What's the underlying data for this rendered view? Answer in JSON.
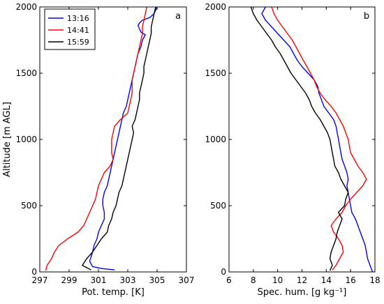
{
  "chart_data": [
    {
      "type": "line",
      "panel_label": "a",
      "xlabel": "Pot. temp. [K]",
      "ylabel": "Altitude [m AGL]",
      "xlim": [
        297,
        307
      ],
      "ylim": [
        0,
        2000
      ],
      "xticks": [
        "297",
        "299",
        "301",
        "303",
        "305",
        "307"
      ],
      "yticks": [
        "0",
        "500",
        "1000",
        "1500",
        "2000"
      ],
      "legend": "top-left",
      "series": [
        {
          "name": "13:16",
          "color": "#0000ff",
          "points": [
            [
              302.1,
              15
            ],
            [
              301.3,
              25
            ],
            [
              300.6,
              40
            ],
            [
              300.4,
              80
            ],
            [
              300.6,
              150
            ],
            [
              300.7,
              200
            ],
            [
              300.9,
              250
            ],
            [
              301.0,
              300
            ],
            [
              301.2,
              350
            ],
            [
              301.4,
              400
            ],
            [
              301.4,
              450
            ],
            [
              301.3,
              500
            ],
            [
              301.3,
              550
            ],
            [
              301.4,
              600
            ],
            [
              301.6,
              650
            ],
            [
              301.7,
              700
            ],
            [
              301.8,
              750
            ],
            [
              301.9,
              800
            ],
            [
              302.0,
              850
            ],
            [
              302.1,
              900
            ],
            [
              302.2,
              950
            ],
            [
              302.3,
              1000
            ],
            [
              302.4,
              1050
            ],
            [
              302.5,
              1100
            ],
            [
              302.6,
              1150
            ],
            [
              302.7,
              1200
            ],
            [
              302.9,
              1250
            ],
            [
              303.0,
              1300
            ],
            [
              303.1,
              1350
            ],
            [
              303.2,
              1400
            ],
            [
              303.3,
              1450
            ],
            [
              303.4,
              1500
            ],
            [
              303.5,
              1550
            ],
            [
              303.6,
              1600
            ],
            [
              303.7,
              1650
            ],
            [
              303.9,
              1700
            ],
            [
              304.0,
              1750
            ],
            [
              304.2,
              1790
            ],
            [
              303.9,
              1810
            ],
            [
              303.7,
              1860
            ],
            [
              303.8,
              1880
            ],
            [
              304.0,
              1900
            ],
            [
              304.5,
              1920
            ],
            [
              304.8,
              1950
            ],
            [
              305.0,
              2000
            ]
          ]
        },
        {
          "name": "14:41",
          "color": "#ff0000",
          "points": [
            [
              297.4,
              10
            ],
            [
              297.5,
              50
            ],
            [
              297.8,
              100
            ],
            [
              298.0,
              150
            ],
            [
              298.3,
              200
            ],
            [
              298.9,
              250
            ],
            [
              299.6,
              300
            ],
            [
              300.0,
              350
            ],
            [
              300.2,
              400
            ],
            [
              300.4,
              450
            ],
            [
              300.6,
              500
            ],
            [
              300.8,
              550
            ],
            [
              300.9,
              600
            ],
            [
              301.0,
              650
            ],
            [
              301.2,
              700
            ],
            [
              301.4,
              750
            ],
            [
              301.8,
              800
            ],
            [
              302.0,
              850
            ],
            [
              301.9,
              900
            ],
            [
              301.9,
              950
            ],
            [
              301.9,
              1000
            ],
            [
              302.0,
              1050
            ],
            [
              302.1,
              1100
            ],
            [
              302.5,
              1150
            ],
            [
              303.0,
              1200
            ],
            [
              303.1,
              1250
            ],
            [
              303.2,
              1300
            ],
            [
              303.3,
              1350
            ],
            [
              303.3,
              1400
            ],
            [
              303.3,
              1450
            ],
            [
              303.4,
              1500
            ],
            [
              303.5,
              1550
            ],
            [
              303.6,
              1600
            ],
            [
              303.7,
              1650
            ],
            [
              303.8,
              1700
            ],
            [
              303.9,
              1750
            ],
            [
              304.0,
              1800
            ],
            [
              304.0,
              1850
            ],
            [
              304.1,
              1900
            ],
            [
              304.2,
              1950
            ],
            [
              304.3,
              2000
            ]
          ]
        },
        {
          "name": "15:59",
          "color": "#000000",
          "points": [
            [
              300.5,
              15
            ],
            [
              299.9,
              50
            ],
            [
              300.2,
              100
            ],
            [
              300.6,
              150
            ],
            [
              300.9,
              200
            ],
            [
              301.2,
              250
            ],
            [
              301.6,
              300
            ],
            [
              301.7,
              350
            ],
            [
              301.9,
              400
            ],
            [
              302.0,
              450
            ],
            [
              302.2,
              500
            ],
            [
              302.3,
              550
            ],
            [
              302.4,
              600
            ],
            [
              302.6,
              650
            ],
            [
              302.7,
              700
            ],
            [
              302.8,
              750
            ],
            [
              302.9,
              800
            ],
            [
              303.0,
              850
            ],
            [
              303.1,
              900
            ],
            [
              303.2,
              950
            ],
            [
              303.3,
              1000
            ],
            [
              303.4,
              1050
            ],
            [
              303.3,
              1100
            ],
            [
              303.5,
              1150
            ],
            [
              303.6,
              1200
            ],
            [
              303.7,
              1250
            ],
            [
              303.8,
              1300
            ],
            [
              303.8,
              1350
            ],
            [
              303.9,
              1400
            ],
            [
              304.0,
              1450
            ],
            [
              304.1,
              1500
            ],
            [
              304.1,
              1550
            ],
            [
              304.2,
              1600
            ],
            [
              304.3,
              1650
            ],
            [
              304.4,
              1700
            ],
            [
              304.5,
              1750
            ],
            [
              304.6,
              1800
            ],
            [
              304.6,
              1850
            ],
            [
              304.7,
              1900
            ],
            [
              304.8,
              1950
            ],
            [
              304.9,
              2000
            ]
          ]
        }
      ]
    },
    {
      "type": "line",
      "panel_label": "b",
      "xlabel": "Spec. hum. [g kg⁻¹]",
      "ylabel": "",
      "xlim": [
        6,
        18
      ],
      "ylim": [
        0,
        2000
      ],
      "xticks": [
        "6",
        "8",
        "10",
        "12",
        "14",
        "16",
        "18"
      ],
      "yticks": [
        "0",
        "500",
        "1000",
        "1500",
        "2000"
      ],
      "series": [
        {
          "name": "13:16",
          "color": "#0000ff",
          "points": [
            [
              17.8,
              0
            ],
            [
              17.6,
              50
            ],
            [
              17.4,
              100
            ],
            [
              17.3,
              150
            ],
            [
              17.2,
              200
            ],
            [
              17.0,
              250
            ],
            [
              16.8,
              300
            ],
            [
              16.6,
              350
            ],
            [
              16.4,
              400
            ],
            [
              16.1,
              450
            ],
            [
              16.0,
              500
            ],
            [
              15.9,
              550
            ],
            [
              15.8,
              600
            ],
            [
              15.7,
              650
            ],
            [
              15.8,
              700
            ],
            [
              15.7,
              750
            ],
            [
              15.5,
              800
            ],
            [
              15.3,
              850
            ],
            [
              15.2,
              900
            ],
            [
              15.1,
              950
            ],
            [
              15.0,
              1000
            ],
            [
              14.9,
              1050
            ],
            [
              14.8,
              1100
            ],
            [
              14.6,
              1150
            ],
            [
              14.2,
              1200
            ],
            [
              13.8,
              1250
            ],
            [
              13.6,
              1300
            ],
            [
              13.4,
              1350
            ],
            [
              13.3,
              1400
            ],
            [
              13.0,
              1450
            ],
            [
              12.5,
              1500
            ],
            [
              12.0,
              1550
            ],
            [
              11.6,
              1600
            ],
            [
              11.3,
              1650
            ],
            [
              11.0,
              1700
            ],
            [
              10.5,
              1750
            ],
            [
              10.0,
              1800
            ],
            [
              9.5,
              1850
            ],
            [
              9.0,
              1900
            ],
            [
              8.7,
              1950
            ],
            [
              9.0,
              2000
            ]
          ]
        },
        {
          "name": "14:41",
          "color": "#ff0000",
          "points": [
            [
              14.5,
              15
            ],
            [
              14.8,
              50
            ],
            [
              15.1,
              100
            ],
            [
              15.4,
              150
            ],
            [
              15.3,
              200
            ],
            [
              15.0,
              250
            ],
            [
              14.6,
              300
            ],
            [
              14.4,
              350
            ],
            [
              14.8,
              400
            ],
            [
              15.3,
              450
            ],
            [
              15.6,
              500
            ],
            [
              16.0,
              550
            ],
            [
              16.5,
              600
            ],
            [
              17.0,
              650
            ],
            [
              17.3,
              700
            ],
            [
              17.0,
              750
            ],
            [
              16.6,
              800
            ],
            [
              16.3,
              850
            ],
            [
              16.0,
              900
            ],
            [
              15.9,
              950
            ],
            [
              15.8,
              1000
            ],
            [
              15.6,
              1050
            ],
            [
              15.4,
              1100
            ],
            [
              15.1,
              1150
            ],
            [
              14.8,
              1200
            ],
            [
              14.4,
              1250
            ],
            [
              13.9,
              1300
            ],
            [
              13.5,
              1350
            ],
            [
              13.2,
              1400
            ],
            [
              13.0,
              1450
            ],
            [
              12.7,
              1500
            ],
            [
              12.4,
              1550
            ],
            [
              12.1,
              1600
            ],
            [
              11.8,
              1650
            ],
            [
              11.5,
              1700
            ],
            [
              11.2,
              1750
            ],
            [
              10.8,
              1800
            ],
            [
              10.4,
              1850
            ],
            [
              10.0,
              1900
            ],
            [
              9.7,
              1950
            ],
            [
              9.5,
              2000
            ]
          ]
        },
        {
          "name": "15:59",
          "color": "#000000",
          "points": [
            [
              14.3,
              10
            ],
            [
              14.5,
              50
            ],
            [
              14.3,
              100
            ],
            [
              14.4,
              150
            ],
            [
              14.6,
              200
            ],
            [
              14.8,
              250
            ],
            [
              14.9,
              300
            ],
            [
              15.1,
              350
            ],
            [
              15.3,
              400
            ],
            [
              15.0,
              450
            ],
            [
              15.5,
              500
            ],
            [
              15.6,
              550
            ],
            [
              15.8,
              600
            ],
            [
              15.5,
              650
            ],
            [
              15.2,
              700
            ],
            [
              15.0,
              750
            ],
            [
              14.7,
              800
            ],
            [
              14.6,
              850
            ],
            [
              14.5,
              900
            ],
            [
              14.4,
              950
            ],
            [
              14.3,
              1000
            ],
            [
              14.1,
              1050
            ],
            [
              13.8,
              1100
            ],
            [
              13.5,
              1150
            ],
            [
              13.1,
              1200
            ],
            [
              12.8,
              1250
            ],
            [
              12.6,
              1300
            ],
            [
              12.3,
              1350
            ],
            [
              11.9,
              1400
            ],
            [
              11.5,
              1450
            ],
            [
              11.1,
              1500
            ],
            [
              10.8,
              1550
            ],
            [
              10.5,
              1600
            ],
            [
              10.2,
              1650
            ],
            [
              9.8,
              1700
            ],
            [
              9.5,
              1750
            ],
            [
              9.1,
              1800
            ],
            [
              8.7,
              1850
            ],
            [
              8.3,
              1900
            ],
            [
              8.0,
              1950
            ],
            [
              7.8,
              2000
            ]
          ]
        }
      ]
    }
  ]
}
